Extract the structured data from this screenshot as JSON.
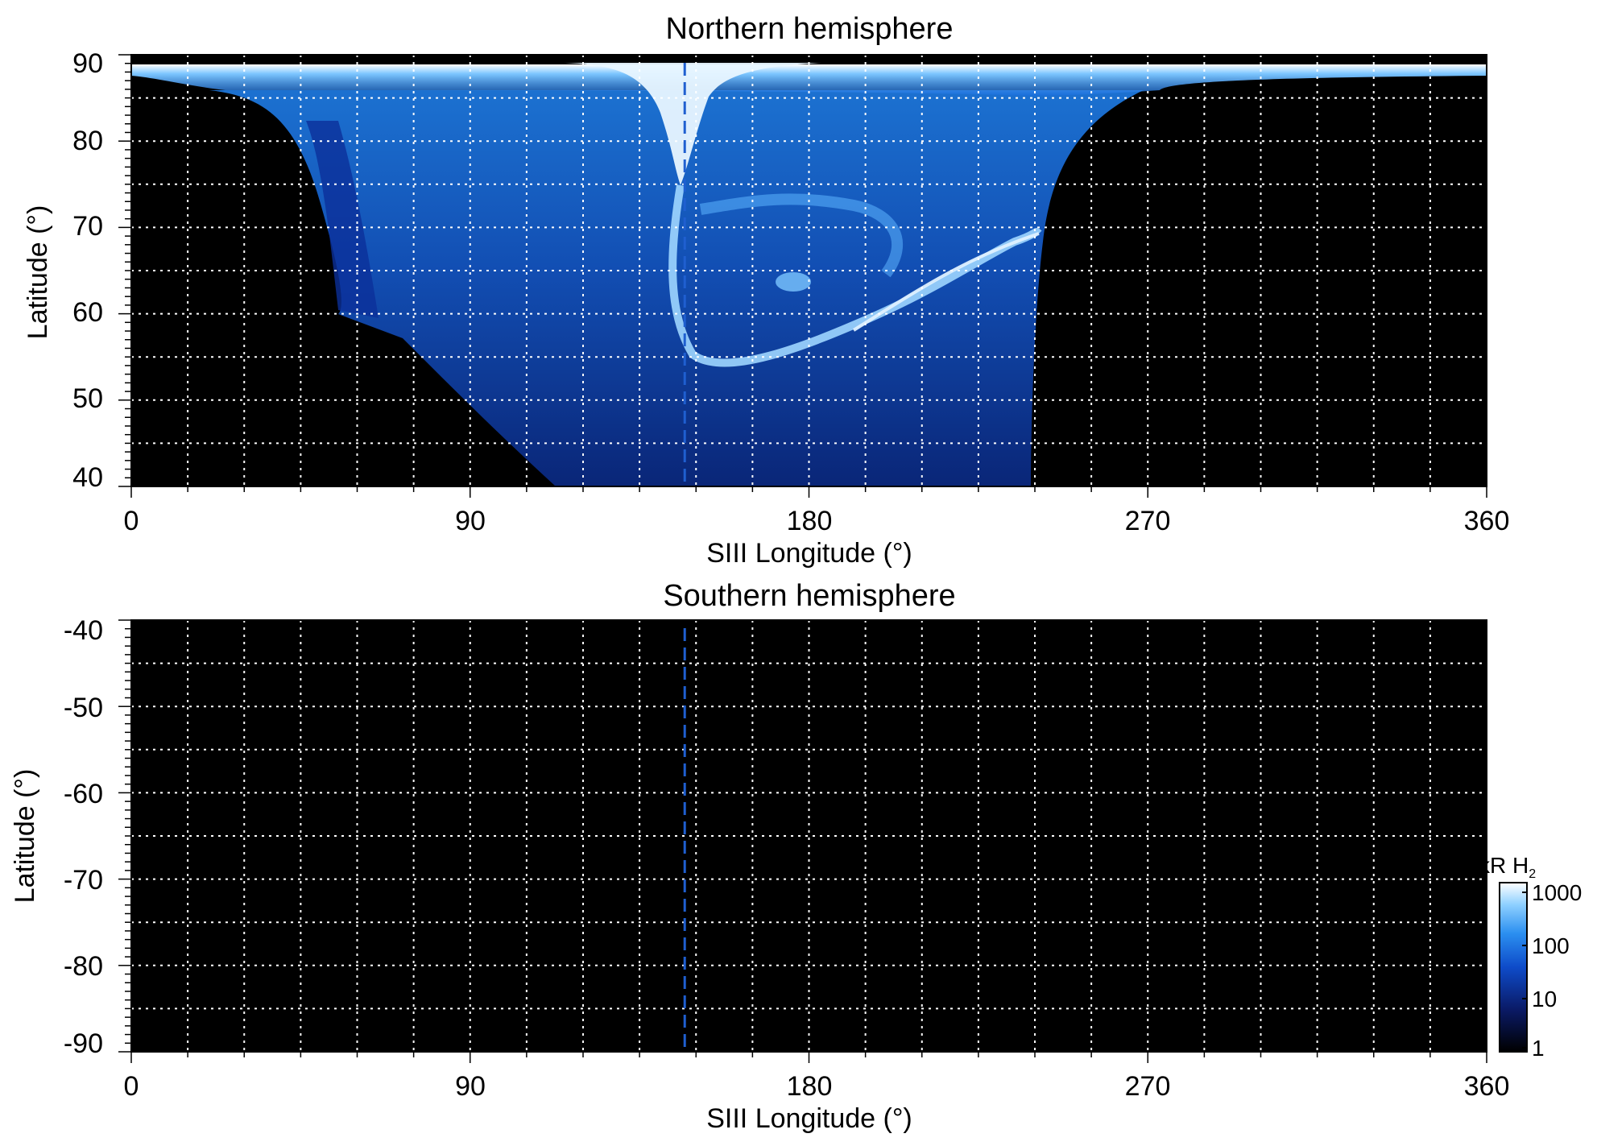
{
  "chart_data": [
    {
      "type": "heatmap",
      "title": "Northern hemisphere",
      "xlabel": "SIII Longitude (°)",
      "ylabel": "Latitude (°)",
      "xlim": [
        0,
        360
      ],
      "ylim": [
        40,
        90
      ],
      "x_ticks": [
        0,
        90,
        180,
        270,
        360
      ],
      "x_tick_labels": [
        "0",
        "90",
        "180",
        "270",
        "360"
      ],
      "y_ticks": [
        90,
        80,
        70,
        60,
        50,
        40
      ],
      "y_tick_labels": [
        "90",
        "80",
        "70",
        "60",
        "50",
        "40"
      ],
      "grid": true,
      "grid_x_step": 15,
      "grid_y_step": 5,
      "reference_line": {
        "style": "dashed",
        "color": "#1f5fd0",
        "longitude": 147
      },
      "emission": {
        "description": "Aurora emission, brightness scaled log (1–1000 kR H2)",
        "region_longitude": [
          0,
          360
        ],
        "main_oval_latitude_longitude": [
          [
            147,
            57
          ],
          [
            160,
            55
          ],
          [
            175,
            56
          ],
          [
            190,
            58
          ],
          [
            205,
            61
          ],
          [
            220,
            64
          ],
          [
            235,
            67
          ],
          [
            245,
            69
          ]
        ],
        "brightest_cusp_longitude": [
          140,
          160
        ],
        "brightest_cusp_latitude": [
          80,
          90
        ]
      }
    },
    {
      "type": "heatmap",
      "title": "Southern hemisphere",
      "xlabel": "SIII Longitude (°)",
      "ylabel": "Latitude (°)",
      "xlim": [
        0,
        360
      ],
      "ylim": [
        -90,
        -40
      ],
      "x_ticks": [
        0,
        90,
        180,
        270,
        360
      ],
      "x_tick_labels": [
        "0",
        "90",
        "180",
        "270",
        "360"
      ],
      "y_ticks": [
        -40,
        -50,
        -60,
        -70,
        -80,
        -90
      ],
      "y_tick_labels": [
        "-40",
        "-50",
        "-60",
        "-70",
        "-80",
        "-90"
      ],
      "grid": true,
      "grid_x_step": 15,
      "grid_y_step": 5,
      "reference_line": {
        "style": "dashed",
        "color": "#1f5fd0",
        "longitude": 147
      },
      "emission": {
        "description": "No emission detected (uniformly black)"
      }
    }
  ],
  "colorbar": {
    "label": "kR H",
    "label_subscript": "2",
    "scale": "log",
    "range": [
      1,
      1000
    ],
    "ticks": [
      1000,
      100,
      10,
      1
    ],
    "tick_labels": [
      "1000",
      "100",
      "10",
      "1"
    ],
    "colors": [
      "#000000",
      "#0a1a66",
      "#0e4bc9",
      "#2b8ff0",
      "#8ed0ff",
      "#ffffff"
    ]
  }
}
